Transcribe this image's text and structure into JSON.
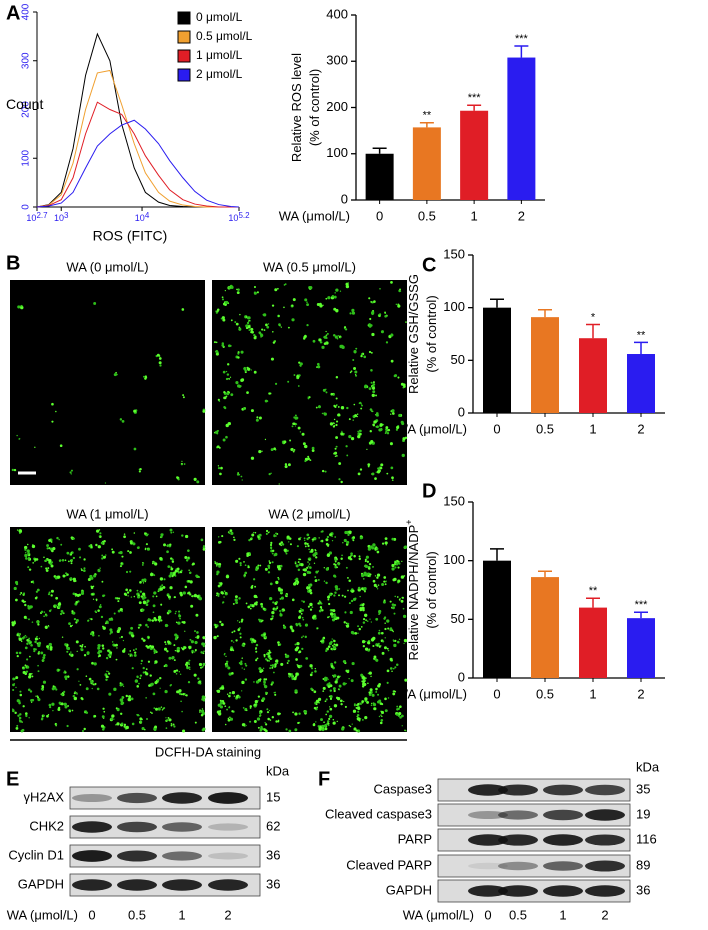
{
  "panel_labels": [
    "A",
    "B",
    "C",
    "D",
    "E",
    "F"
  ],
  "chart_data": [
    {
      "type": "line",
      "xlabel": "ROS (FITC)",
      "ylabel": "Count",
      "log_x": true,
      "x": [
        500,
        700,
        1000,
        1400,
        2000,
        2800,
        4000,
        5600,
        8000,
        11000,
        16000,
        22000,
        32000,
        45000,
        63000,
        89000,
        126000,
        158000
      ],
      "series": [
        {
          "name": "0 μmol/L",
          "color": "#000000",
          "values": [
            0,
            5,
            30,
            120,
            270,
            355,
            300,
            170,
            80,
            30,
            10,
            3,
            1,
            0,
            0,
            0,
            0,
            0
          ]
        },
        {
          "name": "0.5 μmol/L",
          "color": "#f0a030",
          "values": [
            0,
            4,
            25,
            90,
            200,
            275,
            280,
            210,
            130,
            70,
            30,
            12,
            4,
            1,
            0,
            0,
            0,
            0
          ]
        },
        {
          "name": "1 μmol/L",
          "color": "#e01e26",
          "values": [
            0,
            3,
            15,
            60,
            150,
            215,
            200,
            190,
            150,
            105,
            65,
            35,
            15,
            6,
            2,
            0,
            0,
            0
          ]
        },
        {
          "name": "2 μmol/L",
          "color": "#2a1cf0",
          "values": [
            0,
            2,
            8,
            30,
            80,
            125,
            150,
            168,
            178,
            160,
            130,
            95,
            60,
            32,
            14,
            5,
            1,
            0
          ]
        }
      ],
      "xlim": [
        501.2,
        158489
      ],
      "xticks": [
        {
          "value": 501.2,
          "label": "10",
          "exponent": "2.7"
        },
        {
          "value": 1000,
          "label": "10",
          "exponent": "3"
        },
        {
          "value": 10000,
          "label": "10",
          "exponent": "4"
        },
        {
          "value": 158489,
          "label": "10",
          "exponent": "5.2"
        }
      ],
      "ylim": [
        0,
        400
      ],
      "yticks": [
        0,
        100,
        200,
        300,
        400
      ],
      "tick_color": "#2a1cf0"
    },
    {
      "type": "bar",
      "xlabel": "WA (μmol/L)",
      "ylabel": [
        "Relative ROS level",
        "(% of control)"
      ],
      "categories": [
        "0",
        "0.5",
        "1",
        "2"
      ],
      "values": [
        100,
        157,
        193,
        308
      ],
      "errors": [
        12,
        10,
        12,
        25
      ],
      "annotations": [
        null,
        "**",
        "***",
        "***"
      ],
      "colors": [
        "#000000",
        "#e87722",
        "#e01e26",
        "#2a1cf0"
      ],
      "ylim": [
        0,
        400
      ],
      "yticks": [
        0,
        100,
        200,
        300,
        400
      ]
    },
    {
      "type": "bar",
      "xlabel": "WA (μmol/L)",
      "ylabel": [
        "Relative GSH/GSSG",
        "(% of control)"
      ],
      "categories": [
        "0",
        "0.5",
        "1",
        "2"
      ],
      "values": [
        100,
        91,
        71,
        56
      ],
      "errors": [
        8,
        7,
        13,
        11
      ],
      "annotations": [
        null,
        null,
        "*",
        "**"
      ],
      "colors": [
        "#000000",
        "#e87722",
        "#e01e26",
        "#2a1cf0"
      ],
      "ylim": [
        0,
        150
      ],
      "yticks": [
        0,
        50,
        100,
        150
      ]
    },
    {
      "type": "bar",
      "xlabel": "WA (μmol/L)",
      "ylabel": [
        "Relative NADPH/NADP",
        "(% of control)"
      ],
      "ylabel_sup": "+",
      "categories": [
        "0",
        "0.5",
        "1",
        "2"
      ],
      "values": [
        100,
        86,
        60,
        51
      ],
      "errors": [
        10,
        5,
        8,
        5
      ],
      "annotations": [
        null,
        null,
        "**",
        "***"
      ],
      "colors": [
        "#000000",
        "#e87722",
        "#e01e26",
        "#2a1cf0"
      ],
      "ylim": [
        0,
        150
      ],
      "yticks": [
        0,
        50,
        100,
        150
      ]
    }
  ],
  "images": {
    "titles": [
      "WA (0 μmol/L)",
      "WA (0.5 μmol/L)",
      "WA (1 μmol/L)",
      "WA (2 μmol/L)"
    ],
    "caption": "DCFH-DA staining"
  },
  "blots": [
    {
      "unit": "kDa",
      "xlabel": "WA (μmol/L)",
      "lanes": [
        "0",
        "0.5",
        "1",
        "2"
      ],
      "rows": [
        {
          "label": "γH2AX",
          "kda": 15
        },
        {
          "label": "CHK2",
          "kda": 62
        },
        {
          "label": "Cyclin D1",
          "kda": 36
        },
        {
          "label": "GAPDH",
          "kda": 36
        }
      ]
    },
    {
      "unit": "kDa",
      "xlabel": "WA (μmol/L)",
      "lanes": [
        "0",
        "0.5",
        "1",
        "2"
      ],
      "rows": [
        {
          "label": "Caspase3",
          "kda": 35
        },
        {
          "label": "Cleaved caspase3",
          "kda": 19
        },
        {
          "label": "PARP",
          "kda": 116
        },
        {
          "label": "Cleaved PARP",
          "kda": 89
        },
        {
          "label": "GAPDH",
          "kda": 36
        }
      ]
    }
  ]
}
